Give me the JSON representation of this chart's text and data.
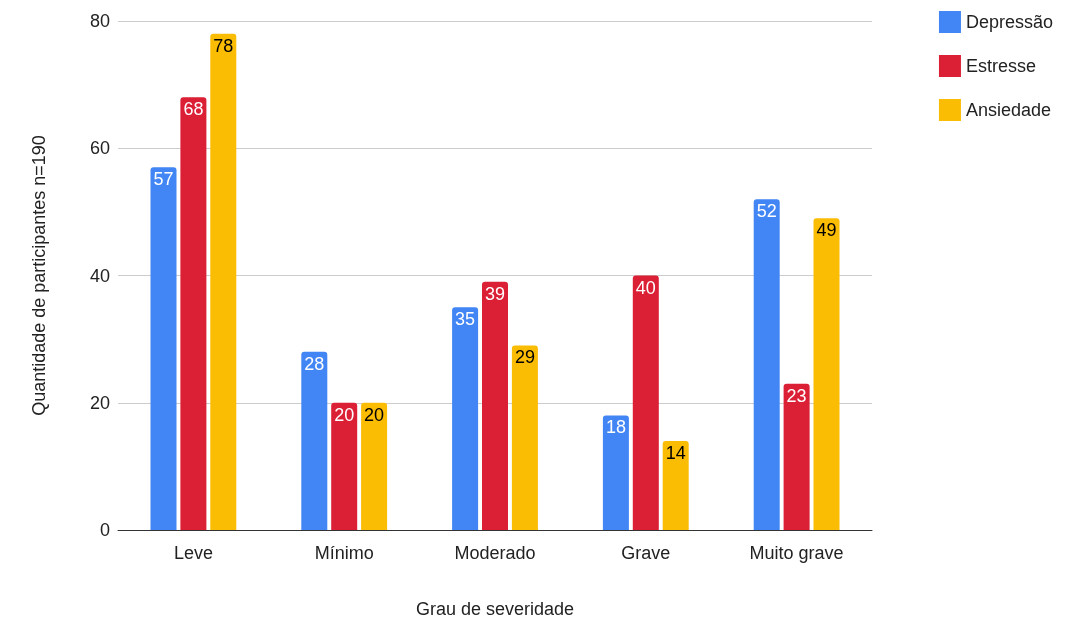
{
  "chart_data": {
    "type": "bar",
    "xlabel": "Grau de severidade",
    "ylabel": "Quantidade de participantes n=190",
    "categories": [
      "Leve",
      "Mínimo",
      "Moderado",
      "Grave",
      "Muito grave"
    ],
    "series": [
      {
        "name": "Depressão",
        "color": "#4285f4",
        "values": [
          57,
          28,
          35,
          18,
          52
        ]
      },
      {
        "name": "Estresse",
        "color": "#db1f35",
        "values": [
          68,
          20,
          39,
          40,
          23
        ]
      },
      {
        "name": "Ansiedade",
        "color": "#fbbc04",
        "values": [
          78,
          20,
          29,
          14,
          49
        ]
      }
    ],
    "ylim": [
      0,
      80
    ],
    "yticks": [
      0,
      20,
      40,
      60,
      80
    ],
    "grid": "y",
    "legend": "top right",
    "data_labels": true
  }
}
